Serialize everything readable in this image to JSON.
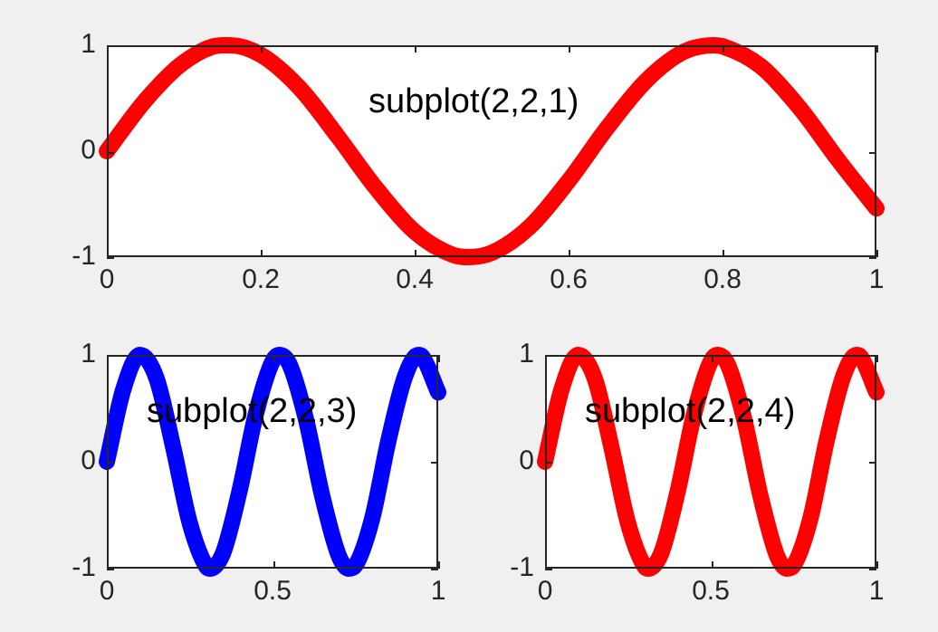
{
  "chart_data": [
    {
      "type": "line",
      "color": "#ff0000",
      "marker": "none",
      "grid": false,
      "x": [
        0,
        0.05,
        0.1,
        0.15,
        0.16,
        0.2,
        0.25,
        0.3,
        0.35,
        0.4,
        0.45,
        0.47,
        0.5,
        0.55,
        0.6,
        0.65,
        0.7,
        0.75,
        0.79,
        0.8,
        0.85,
        0.9,
        0.95,
        1
      ],
      "values": [
        0,
        0.48,
        0.84,
        1.0,
        1.0,
        0.91,
        0.6,
        0.14,
        -0.35,
        -0.76,
        -0.98,
        -1.0,
        -0.96,
        -0.71,
        -0.28,
        0.22,
        0.66,
        0.94,
        1.0,
        0.99,
        0.8,
        0.41,
        -0.08,
        -0.54
      ],
      "xlim": [
        0,
        1
      ],
      "ylim": [
        -1,
        1
      ],
      "xticks": [
        0,
        0.2,
        0.4,
        0.6,
        0.8,
        1
      ],
      "yticks": [
        -1,
        0,
        1
      ],
      "annotations": [
        "subplot(2,2,1)"
      ]
    },
    {
      "type": "line",
      "color": "#0000ff",
      "marker": "none",
      "grid": false,
      "x": [
        0,
        0.05,
        0.1,
        0.15,
        0.2,
        0.25,
        0.3,
        0.31,
        0.35,
        0.4,
        0.45,
        0.5,
        0.52,
        0.55,
        0.6,
        0.65,
        0.7,
        0.73,
        0.75,
        0.8,
        0.85,
        0.9,
        0.94,
        0.95,
        1
      ],
      "values": [
        0,
        0.68,
        1.0,
        0.78,
        0.14,
        -0.57,
        -0.98,
        -1.0,
        -0.86,
        -0.28,
        0.45,
        0.94,
        1.0,
        0.92,
        0.41,
        -0.32,
        -0.88,
        -1.0,
        -0.97,
        -0.54,
        0.2,
        0.8,
        1.0,
        0.99,
        0.65
      ],
      "xlim": [
        0,
        1
      ],
      "ylim": [
        -1,
        1
      ],
      "xticks": [
        0,
        0.5,
        1
      ],
      "yticks": [
        -1,
        0,
        1
      ],
      "annotations": [
        "subplot(2,2,3)"
      ]
    },
    {
      "type": "line",
      "color": "#ff0000",
      "marker": "none",
      "grid": false,
      "x": [
        0,
        0.05,
        0.1,
        0.15,
        0.2,
        0.25,
        0.3,
        0.31,
        0.35,
        0.4,
        0.45,
        0.5,
        0.52,
        0.55,
        0.6,
        0.65,
        0.7,
        0.73,
        0.75,
        0.8,
        0.85,
        0.9,
        0.94,
        0.95,
        1
      ],
      "values": [
        0,
        0.68,
        1.0,
        0.78,
        0.14,
        -0.57,
        -0.98,
        -1.0,
        -0.86,
        -0.28,
        0.45,
        0.94,
        1.0,
        0.92,
        0.41,
        -0.32,
        -0.88,
        -1.0,
        -0.97,
        -0.54,
        0.2,
        0.8,
        1.0,
        0.99,
        0.65
      ],
      "xlim": [
        0,
        1
      ],
      "ylim": [
        -1,
        1
      ],
      "xticks": [
        0,
        0.5,
        1
      ],
      "yticks": [
        -1,
        0,
        1
      ],
      "annotations": [
        "subplot(2,2,4)"
      ]
    }
  ]
}
